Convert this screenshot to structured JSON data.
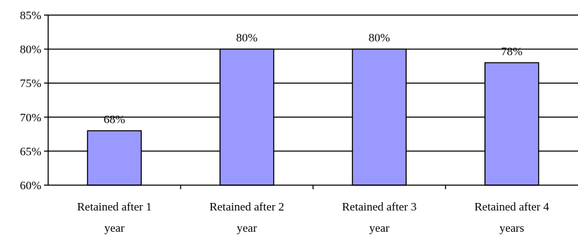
{
  "chart_data": {
    "type": "bar",
    "title": "",
    "xlabel": "",
    "ylabel": "",
    "categories": [
      [
        "Retained after 1",
        "year"
      ],
      [
        "Retained after 2",
        "year"
      ],
      [
        "Retained after 3",
        "year"
      ],
      [
        "Retained after 4",
        "years"
      ]
    ],
    "values": [
      68,
      80,
      80,
      78
    ],
    "data_labels": [
      "68%",
      "80%",
      "80%",
      "78%"
    ],
    "ylim": [
      60,
      85
    ],
    "yticks": [
      60,
      65,
      70,
      75,
      80,
      85
    ],
    "ytick_labels": [
      "60%",
      "65%",
      "70%",
      "75%",
      "80%",
      "85%"
    ],
    "grid": true,
    "legend": "none",
    "colors": {
      "bar_fill": "#9999FF",
      "bar_stroke": "#000000",
      "grid": "#000000",
      "axis": "#000000",
      "text": "#000000"
    }
  }
}
